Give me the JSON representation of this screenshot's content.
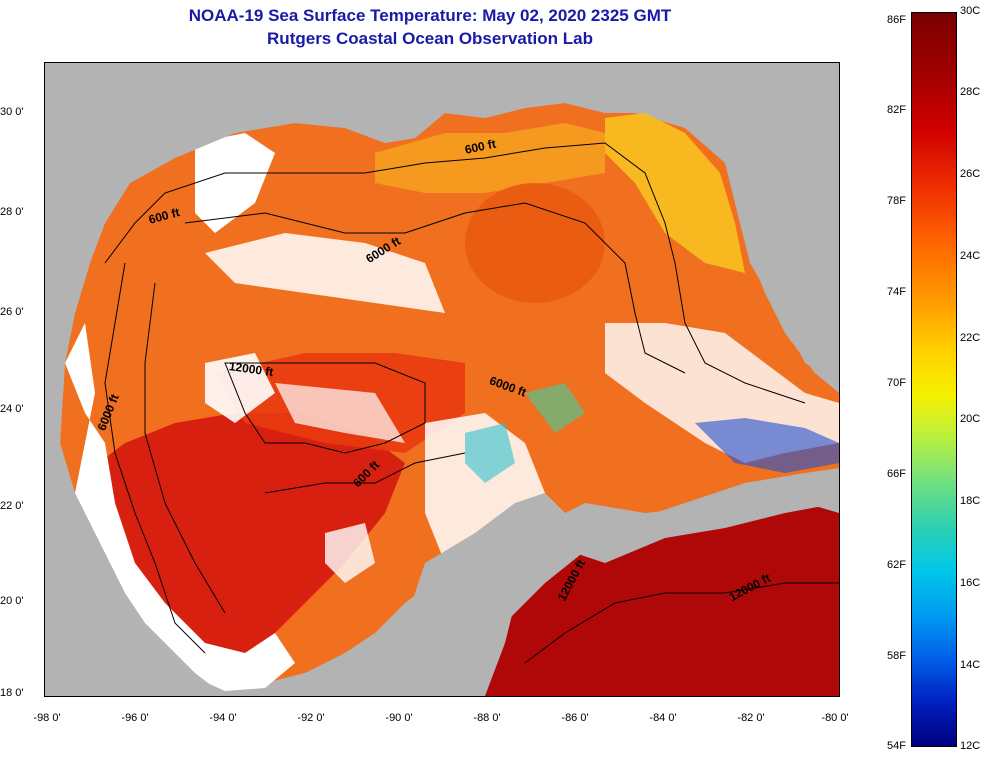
{
  "header": {
    "title": "NOAA-19 Sea Surface Temperature:  May 02, 2020 2325 GMT",
    "subtitle": "Rutgers Coastal Ocean Observation Lab"
  },
  "map": {
    "lat_labels": [
      "30 0'",
      "28 0'",
      "26 0'",
      "24 0'",
      "22 0'",
      "20 0'",
      "18 0'"
    ],
    "lon_labels": [
      "-98 0'",
      "-96 0'",
      "-94 0'",
      "-92 0'",
      "-90 0'",
      "-88 0'",
      "-86 0'",
      "-84 0'",
      "-82 0'",
      "-80 0'"
    ],
    "lat_range": [
      18,
      31
    ],
    "lon_range": [
      -98,
      -80
    ],
    "contour_labels": {
      "c600_north": "600 ft",
      "c600_west": "600 ft",
      "c6000_north": "6000 ft",
      "c12000_west": "12000 ft",
      "c6000_east": "6000 ft",
      "c6000_west": "6000 ft",
      "c600_south": "600 ft",
      "c12000_south": "12000 ft",
      "c12000_east": "12000 ft"
    },
    "colors": {
      "land": "#b3b3b3",
      "cloud": "#ffffff",
      "warm_core": "#e85a10",
      "gulf": "#f07020",
      "shelf": "#f8c020",
      "caribbean": "#b00808"
    }
  },
  "colorbar": {
    "f_labels": [
      "86F",
      "82F",
      "78F",
      "74F",
      "70F",
      "66F",
      "62F",
      "58F",
      "54F"
    ],
    "c_labels": [
      "30C",
      "28C",
      "26C",
      "24C",
      "22C",
      "20C",
      "18C",
      "16C",
      "14C",
      "12C"
    ]
  }
}
